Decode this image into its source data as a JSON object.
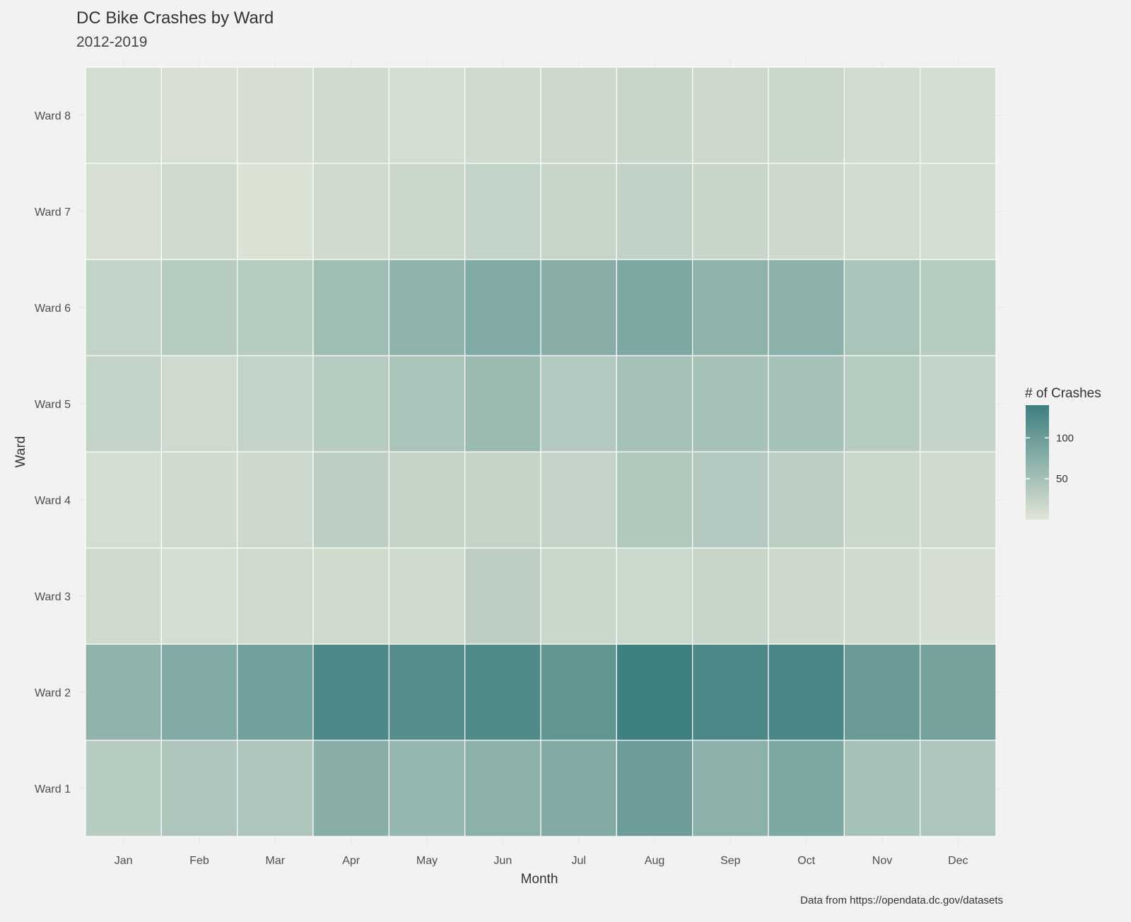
{
  "chart_data": {
    "type": "heatmap",
    "title": "DC Bike Crashes by Ward",
    "subtitle": "2012-2019",
    "xlabel": "Month",
    "ylabel": "Ward",
    "caption": "Data from https://opendata.dc.gov/datasets",
    "x_categories": [
      "Jan",
      "Feb",
      "Mar",
      "Apr",
      "May",
      "Jun",
      "Jul",
      "Aug",
      "Sep",
      "Oct",
      "Nov",
      "Dec"
    ],
    "y_categories": [
      "Ward 1",
      "Ward 2",
      "Ward 3",
      "Ward 4",
      "Ward 5",
      "Ward 6",
      "Ward 7",
      "Ward 8"
    ],
    "values": [
      [
        35,
        42,
        42,
        75,
        65,
        72,
        80,
        100,
        72,
        85,
        50,
        42
      ],
      [
        68,
        80,
        95,
        128,
        120,
        125,
        110,
        140,
        128,
        130,
        103,
        92
      ],
      [
        15,
        10,
        15,
        14,
        15,
        30,
        18,
        17,
        20,
        16,
        14,
        9
      ],
      [
        10,
        14,
        16,
        30,
        24,
        24,
        23,
        40,
        38,
        32,
        18,
        14
      ],
      [
        25,
        15,
        25,
        35,
        45,
        60,
        38,
        50,
        50,
        50,
        35,
        25
      ],
      [
        25,
        35,
        35,
        55,
        70,
        80,
        75,
        85,
        70,
        72,
        45,
        35
      ],
      [
        8,
        15,
        4,
        14,
        18,
        25,
        22,
        27,
        20,
        16,
        12,
        10
      ],
      [
        10,
        8,
        9,
        14,
        10,
        15,
        16,
        20,
        16,
        18,
        12,
        10
      ]
    ],
    "legend": {
      "title": "# of Crashes",
      "ticks": [
        50,
        100
      ],
      "range": [
        0,
        140
      ],
      "color_low": "#dfe5d6",
      "color_high": "#3e7f80"
    },
    "legend_position": "right",
    "grid": true
  }
}
